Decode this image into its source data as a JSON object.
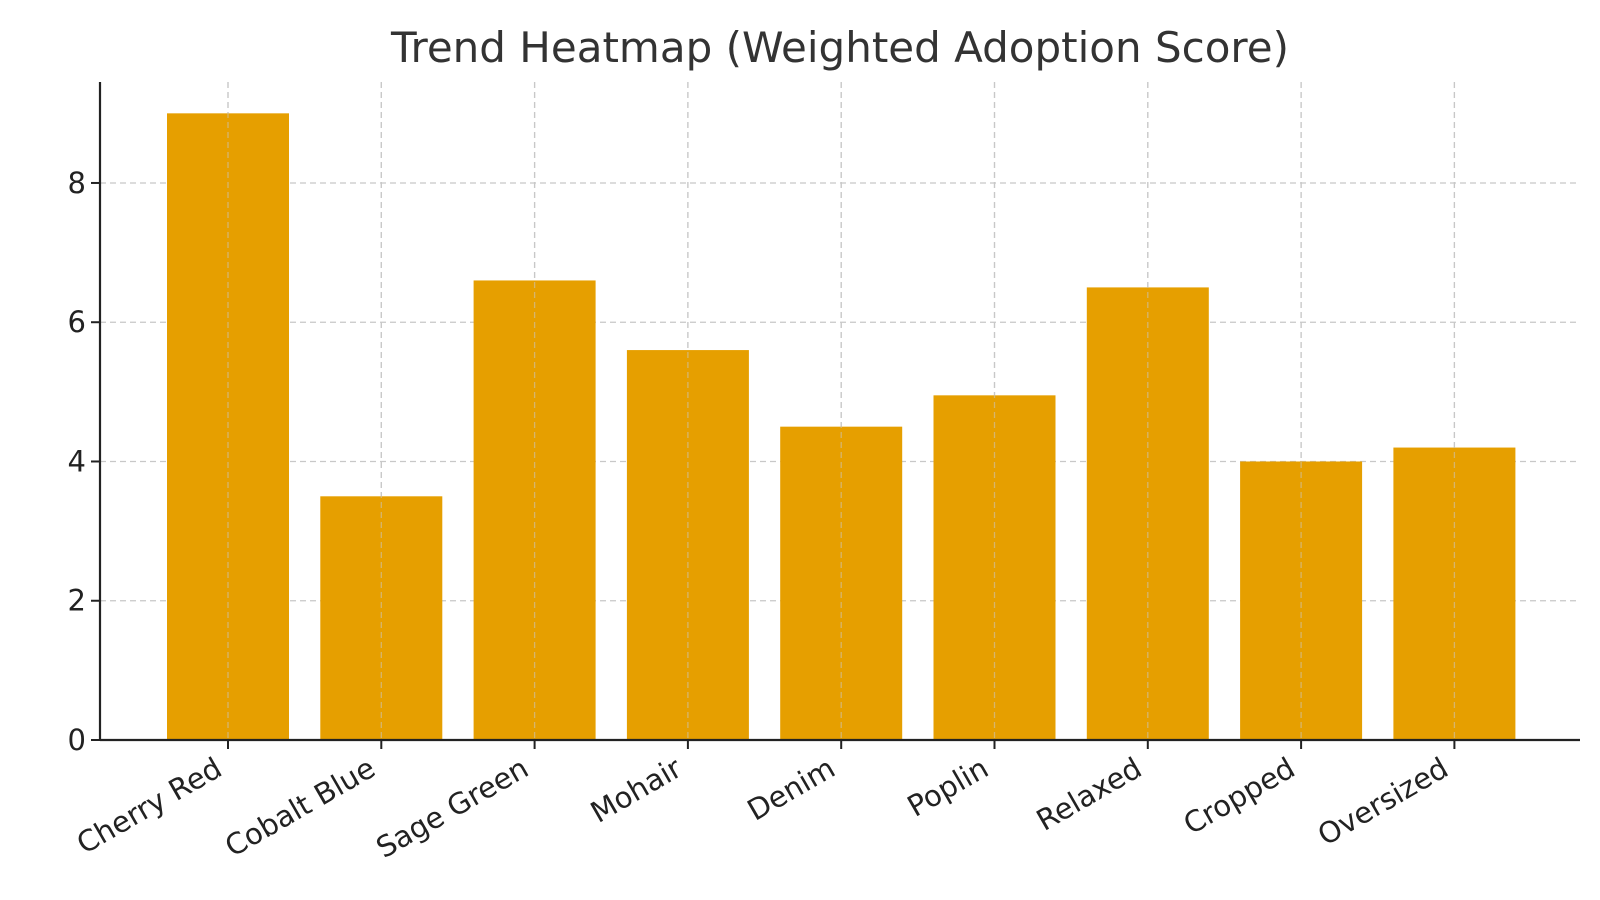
{
  "chart_data": {
    "type": "bar",
    "title": "Trend Heatmap (Weighted Adoption Score)",
    "xlabel": "",
    "ylabel": "",
    "categories": [
      "Cherry Red",
      "Cobalt Blue",
      "Sage Green",
      "Mohair",
      "Denim",
      "Poplin",
      "Relaxed",
      "Cropped",
      "Oversized"
    ],
    "values": [
      9.0,
      3.5,
      6.6,
      5.6,
      4.5,
      4.95,
      6.5,
      4.0,
      4.2
    ],
    "ylim": [
      0,
      9.45
    ],
    "yticks": [
      0,
      2,
      4,
      6,
      8
    ],
    "grid": true,
    "legend": "none",
    "bar_color": "#E69F00"
  }
}
